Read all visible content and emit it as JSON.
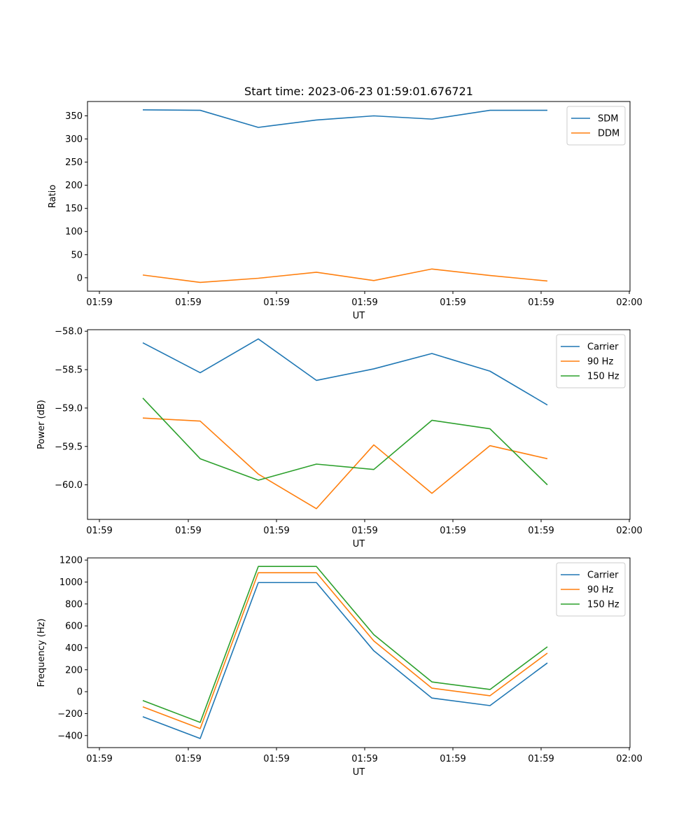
{
  "figure": {
    "title": "Start time: 2023-06-23 01:59:01.676721"
  },
  "chart_data": [
    {
      "type": "line",
      "title": "Start time: 2023-06-23 01:59:01.676721",
      "xlabel": "UT",
      "ylabel": "Ratio",
      "x_tick_labels": [
        "01:59",
        "01:59",
        "01:59",
        "01:59",
        "01:59",
        "01:59",
        "02:00"
      ],
      "ylim": [
        -29,
        381
      ],
      "y_ticks": [
        0,
        50,
        100,
        150,
        200,
        250,
        300,
        350
      ],
      "y_tick_labels": [
        "0",
        "50",
        "100",
        "150",
        "200",
        "250",
        "300",
        "350"
      ],
      "legend": "top-right",
      "grid": false,
      "series": [
        {
          "name": "SDM",
          "color": "#1f77b4",
          "values": [
            363,
            362,
            325,
            341,
            350,
            343,
            362,
            362
          ]
        },
        {
          "name": "DDM",
          "color": "#ff7f0e",
          "values": [
            6,
            -10,
            -1,
            12,
            -6,
            19,
            5,
            -7
          ]
        }
      ]
    },
    {
      "type": "line",
      "xlabel": "UT",
      "ylabel": "Power (dB)",
      "x_tick_labels": [
        "01:59",
        "01:59",
        "01:59",
        "01:59",
        "01:59",
        "01:59",
        "02:00"
      ],
      "ylim": [
        -60.45,
        -57.98
      ],
      "y_ticks": [
        -60.0,
        -59.5,
        -59.0,
        -58.5,
        -58.0
      ],
      "y_tick_labels": [
        "−60.0",
        "−59.5",
        "−59.0",
        "−58.5",
        "−58.0"
      ],
      "legend": "top-right",
      "grid": false,
      "series": [
        {
          "name": "Carrier",
          "color": "#1f77b4",
          "values": [
            -58.15,
            -58.54,
            -58.1,
            -58.64,
            -58.49,
            -58.29,
            -58.52,
            -58.96
          ]
        },
        {
          "name": "90 Hz",
          "color": "#ff7f0e",
          "values": [
            -59.13,
            -59.17,
            -59.86,
            -60.31,
            -59.48,
            -60.11,
            -59.49,
            -59.66
          ]
        },
        {
          "name": "150 Hz",
          "color": "#2ca02c",
          "values": [
            -58.87,
            -59.66,
            -59.94,
            -59.73,
            -59.8,
            -59.16,
            -59.27,
            -60.0
          ]
        }
      ]
    },
    {
      "type": "line",
      "xlabel": "UT",
      "ylabel": "Frequency (Hz)",
      "x_tick_labels": [
        "01:59",
        "01:59",
        "01:59",
        "01:59",
        "01:59",
        "01:59",
        "02:00"
      ],
      "ylim": [
        -510,
        1220
      ],
      "y_ticks": [
        -400,
        -200,
        0,
        200,
        400,
        600,
        800,
        1000,
        1200
      ],
      "y_tick_labels": [
        "−400",
        "−200",
        "0",
        "200",
        "400",
        "600",
        "800",
        "1000",
        "1200"
      ],
      "legend": "top-right",
      "grid": false,
      "series": [
        {
          "name": "Carrier",
          "color": "#1f77b4",
          "values": [
            -228,
            -427,
            995,
            995,
            373,
            -58,
            -127,
            262
          ]
        },
        {
          "name": "90 Hz",
          "color": "#ff7f0e",
          "values": [
            -138,
            -337,
            1085,
            1085,
            463,
            32,
            -37,
            352
          ]
        },
        {
          "name": "150 Hz",
          "color": "#2ca02c",
          "values": [
            -81,
            -280,
            1142,
            1142,
            520,
            89,
            20,
            409
          ]
        }
      ]
    }
  ]
}
